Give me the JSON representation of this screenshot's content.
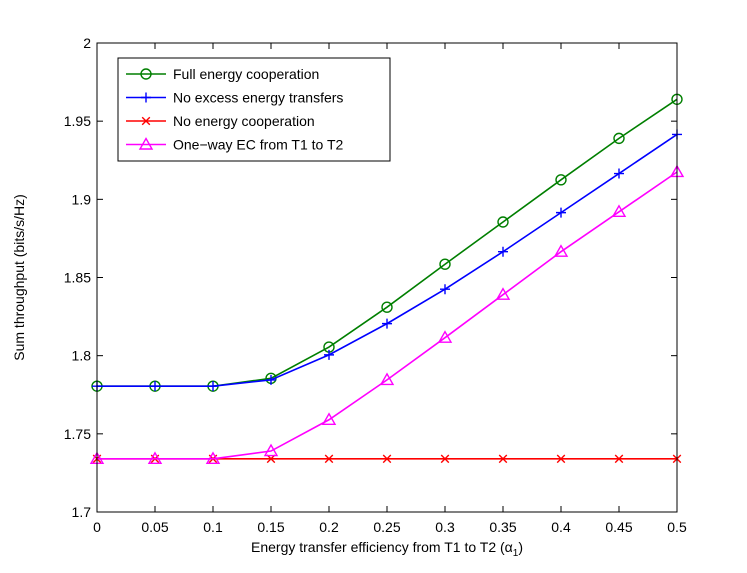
{
  "chart_data": {
    "type": "line",
    "title": "",
    "xlabel": "Energy transfer efficiency from T1 to T2 (α",
    "xlabel_subscript": "1",
    "xlabel_suffix": ")",
    "ylabel": "Sum throughput (bits/s/Hz)",
    "xlim": [
      0,
      0.5
    ],
    "ylim": [
      1.7,
      2
    ],
    "xticks": [
      0,
      0.05,
      0.1,
      0.15,
      0.2,
      0.25,
      0.3,
      0.35,
      0.4,
      0.45,
      0.5
    ],
    "xtick_labels": [
      "0",
      "0.05",
      "0.1",
      "0.15",
      "0.2",
      "0.25",
      "0.3",
      "0.35",
      "0.4",
      "0.45",
      "0.5"
    ],
    "yticks": [
      1.7,
      1.75,
      1.8,
      1.85,
      1.9,
      1.95,
      2
    ],
    "ytick_labels": [
      "1.7",
      "1.75",
      "1.8",
      "1.85",
      "1.9",
      "1.95",
      "2"
    ],
    "grid": false,
    "legend_position": "top-left",
    "x": [
      0,
      0.05,
      0.1,
      0.15,
      0.2,
      0.25,
      0.3,
      0.35,
      0.4,
      0.45,
      0.5
    ],
    "series": [
      {
        "name": "Full energy cooperation",
        "color": "#007f00",
        "marker": "circle",
        "values": [
          1.7805,
          1.7805,
          1.7805,
          1.7855,
          1.8055,
          1.831,
          1.8585,
          1.8855,
          1.9125,
          1.939,
          1.964
        ]
      },
      {
        "name": "No excess energy transfers",
        "color": "#0000ff",
        "marker": "plus",
        "values": [
          1.7805,
          1.7805,
          1.7805,
          1.7845,
          1.8005,
          1.8205,
          1.8425,
          1.8665,
          1.8915,
          1.9165,
          1.9415
        ]
      },
      {
        "name": "No energy cooperation",
        "color": "#ff0000",
        "marker": "x",
        "values": [
          1.734,
          1.734,
          1.734,
          1.734,
          1.734,
          1.734,
          1.734,
          1.734,
          1.734,
          1.734,
          1.734
        ]
      },
      {
        "name": "One−way EC from T1 to T2",
        "color": "#ff00ff",
        "marker": "triangle",
        "values": [
          1.734,
          1.734,
          1.734,
          1.739,
          1.759,
          1.7845,
          1.8115,
          1.839,
          1.8665,
          1.892,
          1.9175
        ]
      }
    ]
  }
}
